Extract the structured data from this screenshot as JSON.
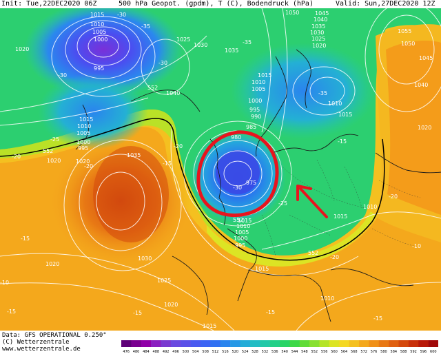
{
  "header": {
    "init": "Init: Tue,22DEC2020 06Z",
    "title": "500 hPa Geopot. (gpdm), T (C), Bodendruck (hPa)",
    "valid": "Valid: Sun,27DEC2020 12Z"
  },
  "footer": {
    "data_line": "Data: GFS OPERATIONAL 0.250°",
    "copyright_line": "(C) Wetterzentrale",
    "url_line": "www.wetterzentrale.de"
  },
  "colorbar": {
    "ticks": [
      "476",
      "480",
      "484",
      "488",
      "492",
      "496",
      "500",
      "504",
      "508",
      "512",
      "516",
      "520",
      "524",
      "528",
      "532",
      "536",
      "540",
      "544",
      "548",
      "552",
      "556",
      "560",
      "564",
      "568",
      "572",
      "576",
      "580",
      "584",
      "588",
      "592",
      "596",
      "600"
    ],
    "colors": [
      "#5e0078",
      "#7a0090",
      "#9000a8",
      "#8a20c0",
      "#7a3ad0",
      "#6a4ae0",
      "#5a50e8",
      "#4a5af0",
      "#3c64f4",
      "#3070f2",
      "#2a84ee",
      "#2698e6",
      "#24acd8",
      "#22bcc4",
      "#22c8a8",
      "#22d088",
      "#28d466",
      "#3cd848",
      "#60dc38",
      "#88e030",
      "#b4e428",
      "#dce424",
      "#f4d824",
      "#f4c020",
      "#f4a81c",
      "#f09018",
      "#e87814",
      "#e06010",
      "#d4480c",
      "#c8300a",
      "#b81808",
      "#a00808"
    ]
  },
  "map_labels": {
    "pressure": [
      "1015",
      "1010",
      "1005",
      "1000",
      "995",
      "1020",
      "1025",
      "1030",
      "1035",
      "1040",
      "1050",
      "1045",
      "1040",
      "1035",
      "1030",
      "1025",
      "1020",
      "1015",
      "1010",
      "1005",
      "1000",
      "995",
      "990",
      "985",
      "980",
      "975",
      "1015",
      "1010",
      "1005",
      "1000",
      "995",
      "1015",
      "1010",
      "1005",
      "1000",
      "995",
      "1020",
      "1035",
      "1010",
      "1055",
      "1050",
      "1045",
      "1040",
      "1020",
      "1015",
      "1010",
      "1015",
      "1010",
      "1015",
      "1020",
      "1025",
      "1020",
      "1030",
      "1015",
      "1020"
    ],
    "geopotential": [
      "552",
      "552",
      "552",
      "552"
    ],
    "temperature": [
      "-30",
      "-35",
      "-30",
      "-35",
      "-30",
      "-25",
      "-20",
      "-20",
      "-15",
      "-20",
      "-15",
      "-20",
      "-15",
      "-30",
      "-35",
      "-25",
      "-20",
      "-15",
      "-15",
      "-10",
      "-15",
      "-15",
      "-10"
    ]
  },
  "annotations": [
    "red-circle-around-low",
    "red-arrow-pointing-north-west"
  ]
}
